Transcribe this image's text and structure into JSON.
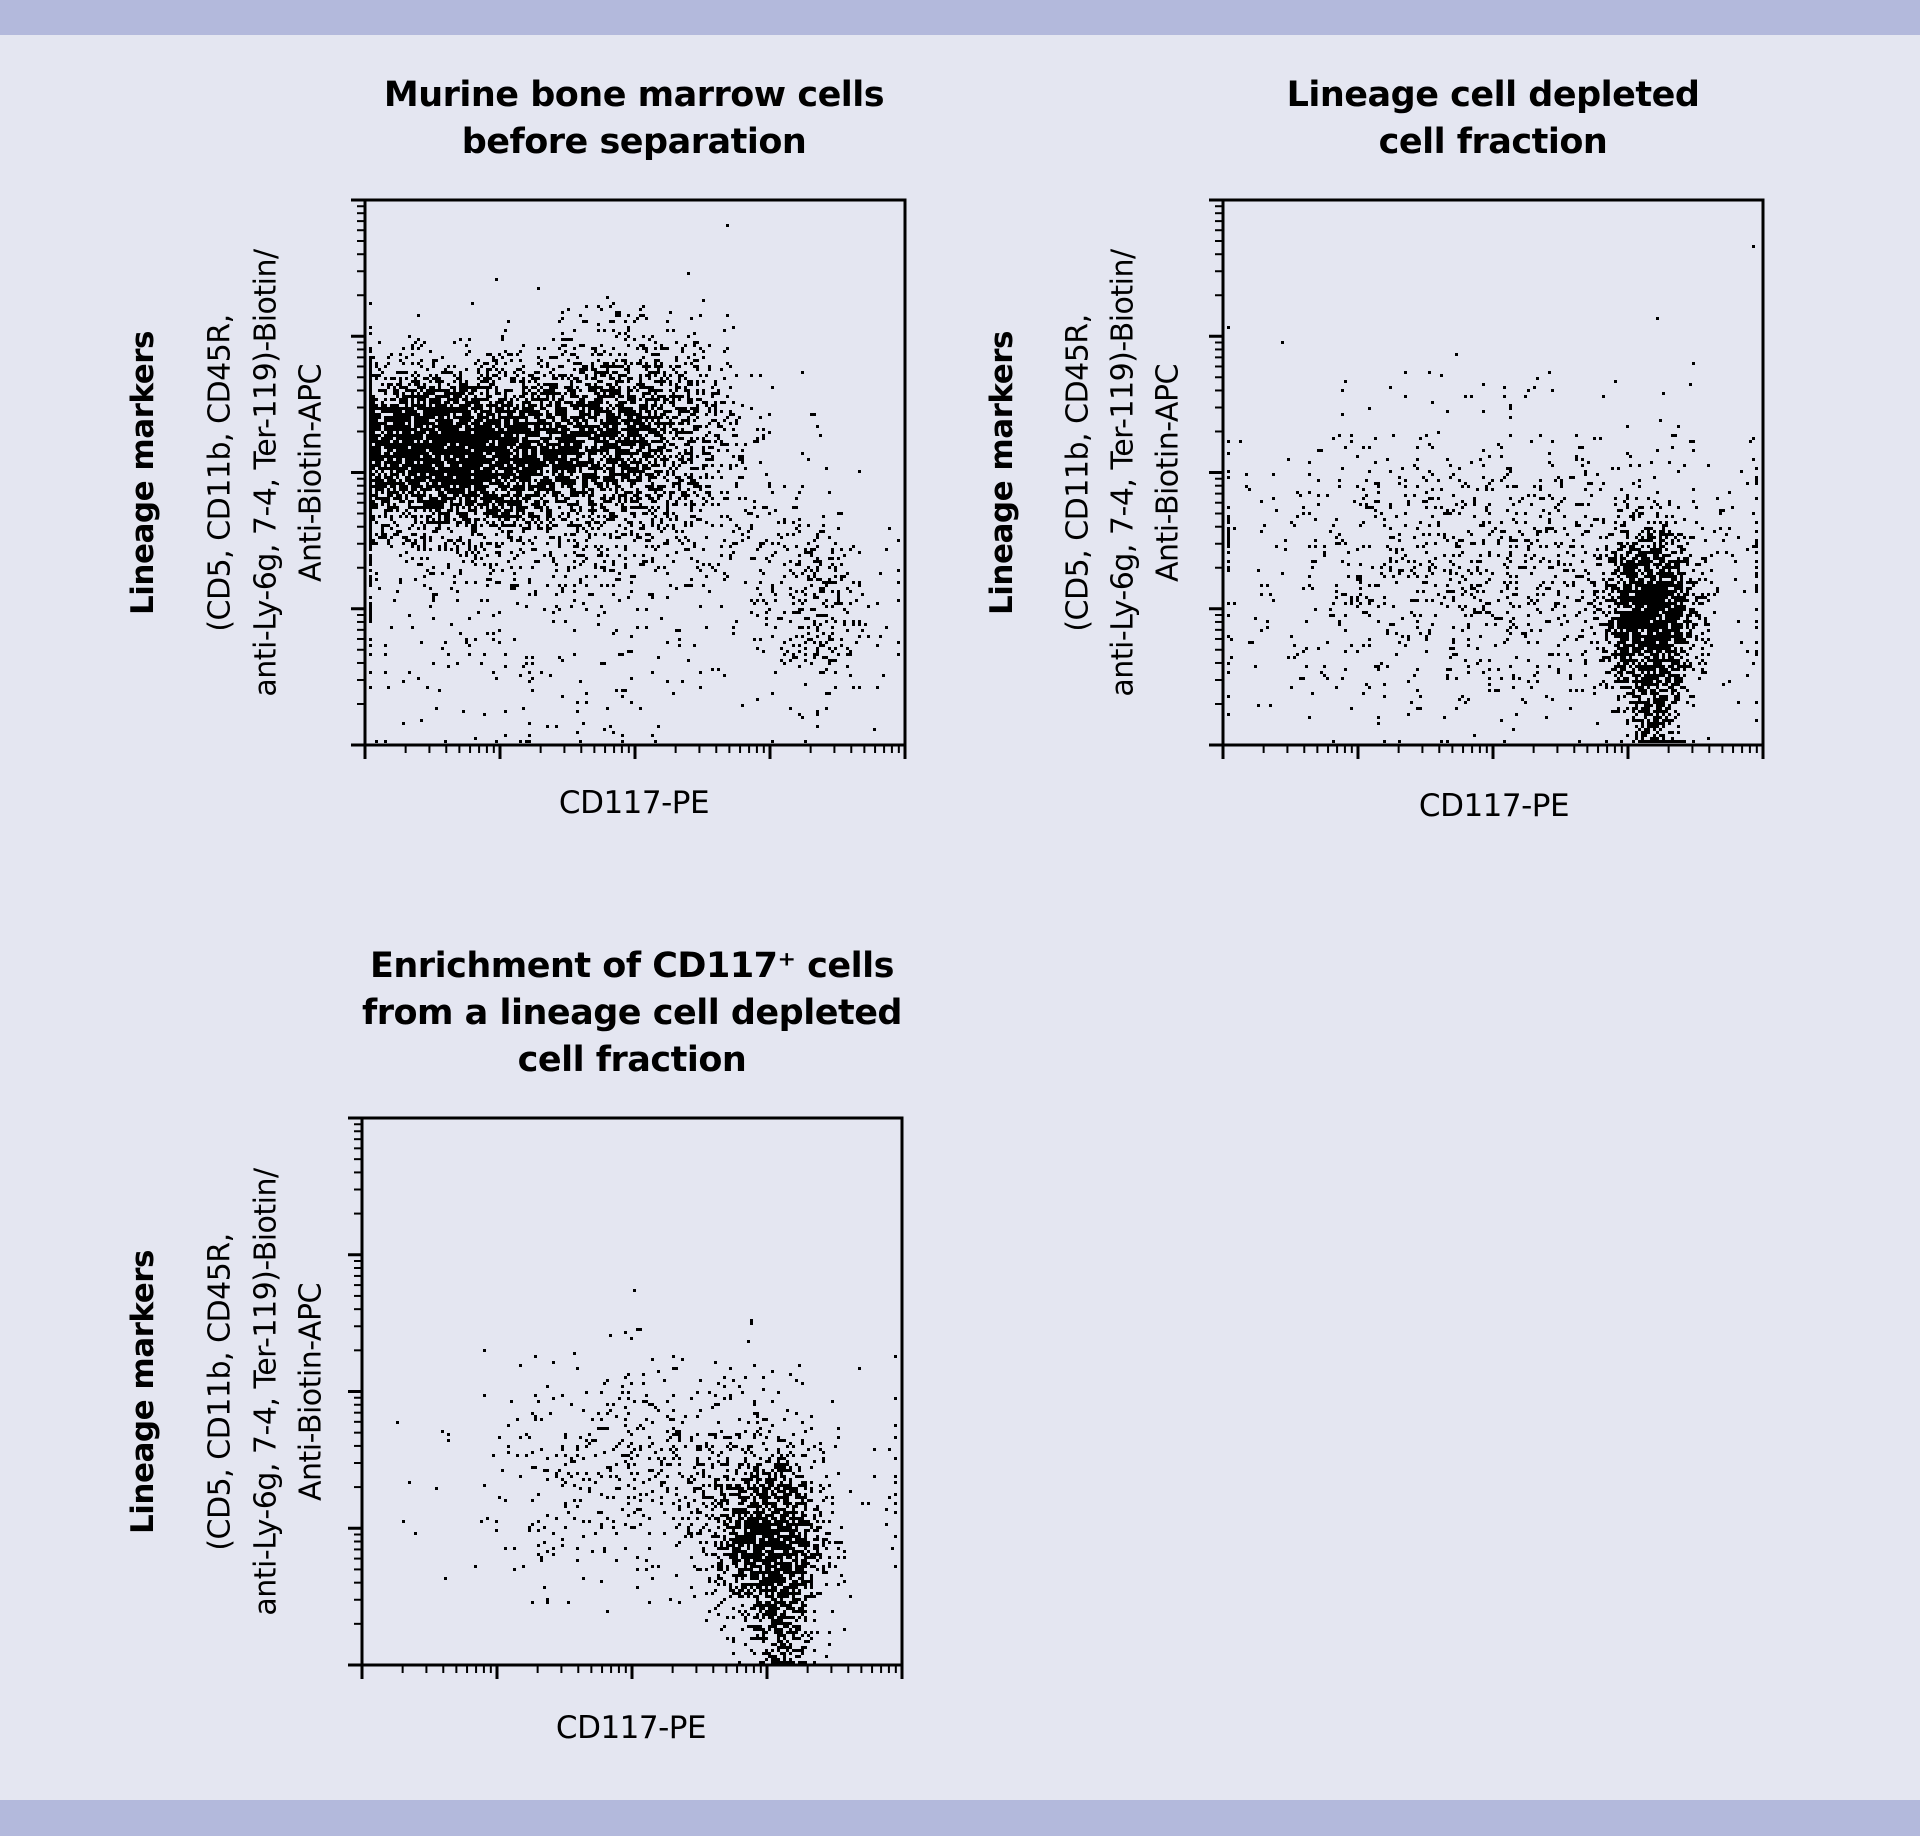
{
  "colors": {
    "band": "#b3b9dc",
    "background": "#e4e6f1",
    "points": "#000000"
  },
  "chart_data": [
    {
      "type": "scatter",
      "title_lines": [
        "Murine bone marrow cells",
        "before separation"
      ],
      "xlabel": "CD117-PE",
      "ylabel_lines": [
        "Lineage markers",
        "(CD5, CD11b, CD45R,",
        "anti-Ly-6g, 7-4, Ter-119)-Biotin/",
        "Anti-Biotin-APC"
      ],
      "xscale": "log",
      "yscale": "log",
      "xlim": [
        1,
        10000
      ],
      "ylim": [
        1,
        10000
      ],
      "tick_labels": "none",
      "grid": false,
      "populations": [
        {
          "x_log10": 0.6,
          "y_log10": 2.15,
          "sd_x": 0.5,
          "sd_y": 0.3,
          "events": 4500
        },
        {
          "x_log10": 1.9,
          "y_log10": 2.3,
          "sd_x": 0.4,
          "sd_y": 0.35,
          "events": 2000
        },
        {
          "x_log10": 1.5,
          "y_log10": 1.6,
          "sd_x": 0.9,
          "sd_y": 0.4,
          "events": 800
        },
        {
          "x_log10": 3.3,
          "y_log10": 1.0,
          "sd_x": 0.2,
          "sd_y": 0.35,
          "events": 300
        },
        {
          "x_log10": 1.5,
          "y_log10": 0.6,
          "sd_x": 0.9,
          "sd_y": 0.4,
          "events": 150
        }
      ]
    },
    {
      "type": "scatter",
      "title_lines": [
        "Lineage cell depleted",
        "cell fraction"
      ],
      "xlabel": "CD117-PE",
      "ylabel_lines": [
        "Lineage markers",
        "(CD5, CD11b, CD45R,",
        "anti-Ly-6g, 7-4, Ter-119)-Biotin/",
        "Anti-Biotin-APC"
      ],
      "xscale": "log",
      "yscale": "log",
      "xlim": [
        1,
        10000
      ],
      "ylim": [
        1,
        10000
      ],
      "tick_labels": "none",
      "grid": false,
      "populations": [
        {
          "x_log10": 3.15,
          "y_log10": 0.95,
          "sd_x": 0.17,
          "sd_y": 0.3,
          "events": 1800
        },
        {
          "x_log10": 3.2,
          "y_log10": 0.3,
          "sd_x": 0.1,
          "sd_y": 0.3,
          "events": 400
        },
        {
          "x_log10": 2.0,
          "y_log10": 1.3,
          "sd_x": 1.0,
          "sd_y": 0.55,
          "events": 1200
        }
      ]
    },
    {
      "type": "scatter",
      "title_lines": [
        "Enrichment of CD117⁺ cells",
        "from a lineage cell depleted",
        "cell fraction"
      ],
      "xlabel": "CD117-PE",
      "ylabel_lines": [
        "Lineage markers",
        "(CD5, CD11b, CD45R,",
        "anti-Ly-6g, 7-4, Ter-119)-Biotin/",
        "Anti-Biotin-APC"
      ],
      "xscale": "log",
      "yscale": "log",
      "xlim": [
        1,
        10000
      ],
      "ylim": [
        1,
        10000
      ],
      "tick_labels": "none",
      "grid": false,
      "populations": [
        {
          "x_log10": 3.0,
          "y_log10": 0.9,
          "sd_x": 0.2,
          "sd_y": 0.3,
          "events": 1500
        },
        {
          "x_log10": 3.1,
          "y_log10": 0.3,
          "sd_x": 0.1,
          "sd_y": 0.25,
          "events": 300
        },
        {
          "x_log10": 2.3,
          "y_log10": 1.4,
          "sd_x": 0.7,
          "sd_y": 0.4,
          "events": 700
        }
      ]
    }
  ]
}
